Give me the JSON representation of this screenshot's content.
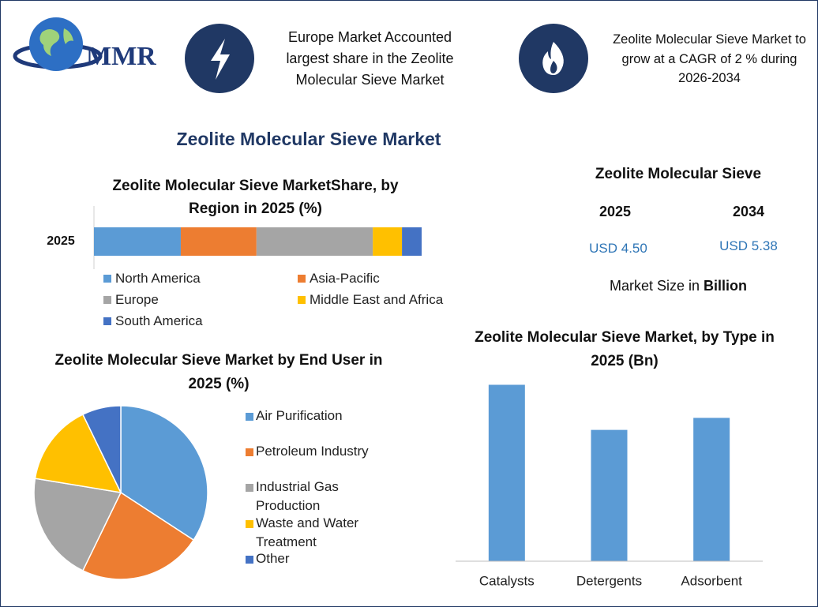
{
  "header": {
    "logo": "MMR",
    "note_left": "Europe Market Accounted largest share in the Zeolite Molecular Sieve Market",
    "note_right": "Zeolite Molecular Sieve Market to grow at a CAGR of 2 % during 2026-2034"
  },
  "title": "Zeolite Molecular Sieve Market",
  "market_size": {
    "title": "Zeolite Molecular Sieve",
    "years": [
      "2025",
      "2034"
    ],
    "values": [
      "USD 4.50",
      "USD 5.38"
    ],
    "note": "Market Size in",
    "unit": "Billion"
  },
  "chart_data": [
    {
      "type": "bar",
      "orientation": "horizontal",
      "stacked": true,
      "title": "Zeolite Molecular Sieve MarketShare, by Region in 2025 (%)",
      "categories": [
        "2025"
      ],
      "xlim": [
        0,
        100
      ],
      "series": [
        {
          "name": "North America",
          "color": "#5b9bd5",
          "values": [
            26.5
          ]
        },
        {
          "name": "Asia-Pacific",
          "color": "#ed7d31",
          "values": [
            23.1
          ]
        },
        {
          "name": "Europe",
          "color": "#a5a5a5",
          "values": [
            35.5
          ]
        },
        {
          "name": "Middle East and Africa",
          "color": "#ffc000",
          "values": [
            8.9
          ]
        },
        {
          "name": "South America",
          "color": "#4472c4",
          "values": [
            6.0
          ]
        }
      ]
    },
    {
      "type": "pie",
      "title": "Zeolite Molecular Sieve Market by End User in 2025 (%)",
      "labels": [
        "Air Purification",
        "Petroleum Industry",
        "Industrial Gas Production",
        "Waste and Water Treatment",
        "Other"
      ],
      "values": [
        34.2,
        23.0,
        20.4,
        15.2,
        7.2
      ],
      "colors": [
        "#5b9bd5",
        "#ed7d31",
        "#a5a5a5",
        "#ffc000",
        "#4472c4"
      ]
    },
    {
      "type": "bar",
      "title": "Zeolite Molecular Sieve Market, by Type in 2025 (Bn)",
      "categories": [
        "Catalysts",
        "Detergents",
        "Adsorbent"
      ],
      "values": [
        1.76,
        1.31,
        1.43
      ],
      "color": "#5b9bd5",
      "ylim": [
        0,
        2
      ]
    }
  ]
}
